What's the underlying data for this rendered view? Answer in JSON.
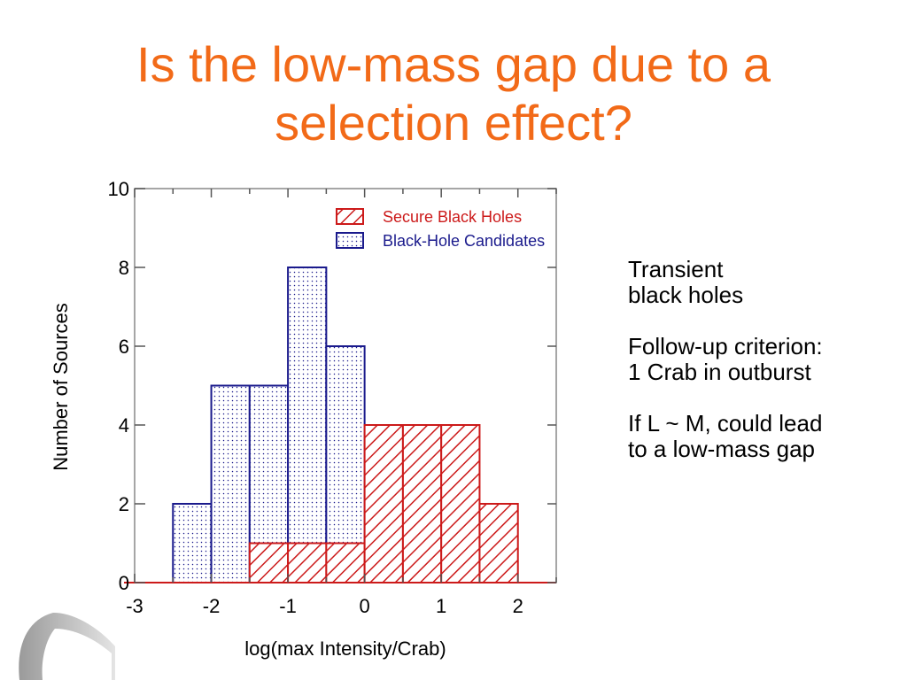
{
  "slide": {
    "title_lines": [
      "Is the low-mass gap due to a",
      "selection effect?"
    ],
    "notes": [
      [
        "Transient",
        "black holes"
      ],
      [
        "Follow-up criterion:",
        "1 Crab in outburst"
      ],
      [
        "If L ~ M, could lead",
        "to a low-mass gap"
      ]
    ]
  },
  "colors": {
    "title": "#f26a18",
    "secure": "#cc1a1a",
    "candidates": "#1a1a8c"
  },
  "chart_data": {
    "type": "bar",
    "xlabel": "log(max Intensity/Crab)",
    "ylabel": "Number of Sources",
    "xlim": [
      -3,
      2.5
    ],
    "ylim": [
      0,
      10
    ],
    "xticks": [
      -3,
      -2,
      -1,
      0,
      1,
      2
    ],
    "yticks": [
      0,
      2,
      4,
      6,
      8,
      10
    ],
    "bin_width": 0.5,
    "legend_position": "top-right",
    "series": [
      {
        "name": "Secure Black Holes",
        "pattern": "hatch",
        "bins": [
          {
            "x0": -1.5,
            "x1": -1.0,
            "value": 1
          },
          {
            "x0": -1.0,
            "x1": -0.5,
            "value": 1
          },
          {
            "x0": -0.5,
            "x1": 0.0,
            "value": 1
          },
          {
            "x0": 0.0,
            "x1": 0.5,
            "value": 4
          },
          {
            "x0": 0.5,
            "x1": 1.0,
            "value": 4
          },
          {
            "x0": 1.0,
            "x1": 1.5,
            "value": 4
          },
          {
            "x0": 1.5,
            "x1": 2.0,
            "value": 2
          }
        ]
      },
      {
        "name": "Black-Hole Candidates",
        "pattern": "dots",
        "bins": [
          {
            "x0": -2.5,
            "x1": -2.0,
            "value": 2
          },
          {
            "x0": -2.0,
            "x1": -1.5,
            "value": 5
          },
          {
            "x0": -1.5,
            "x1": -1.0,
            "value": 5
          },
          {
            "x0": -1.0,
            "x1": -0.5,
            "value": 8
          },
          {
            "x0": -0.5,
            "x1": 0.0,
            "value": 6
          }
        ]
      }
    ]
  }
}
